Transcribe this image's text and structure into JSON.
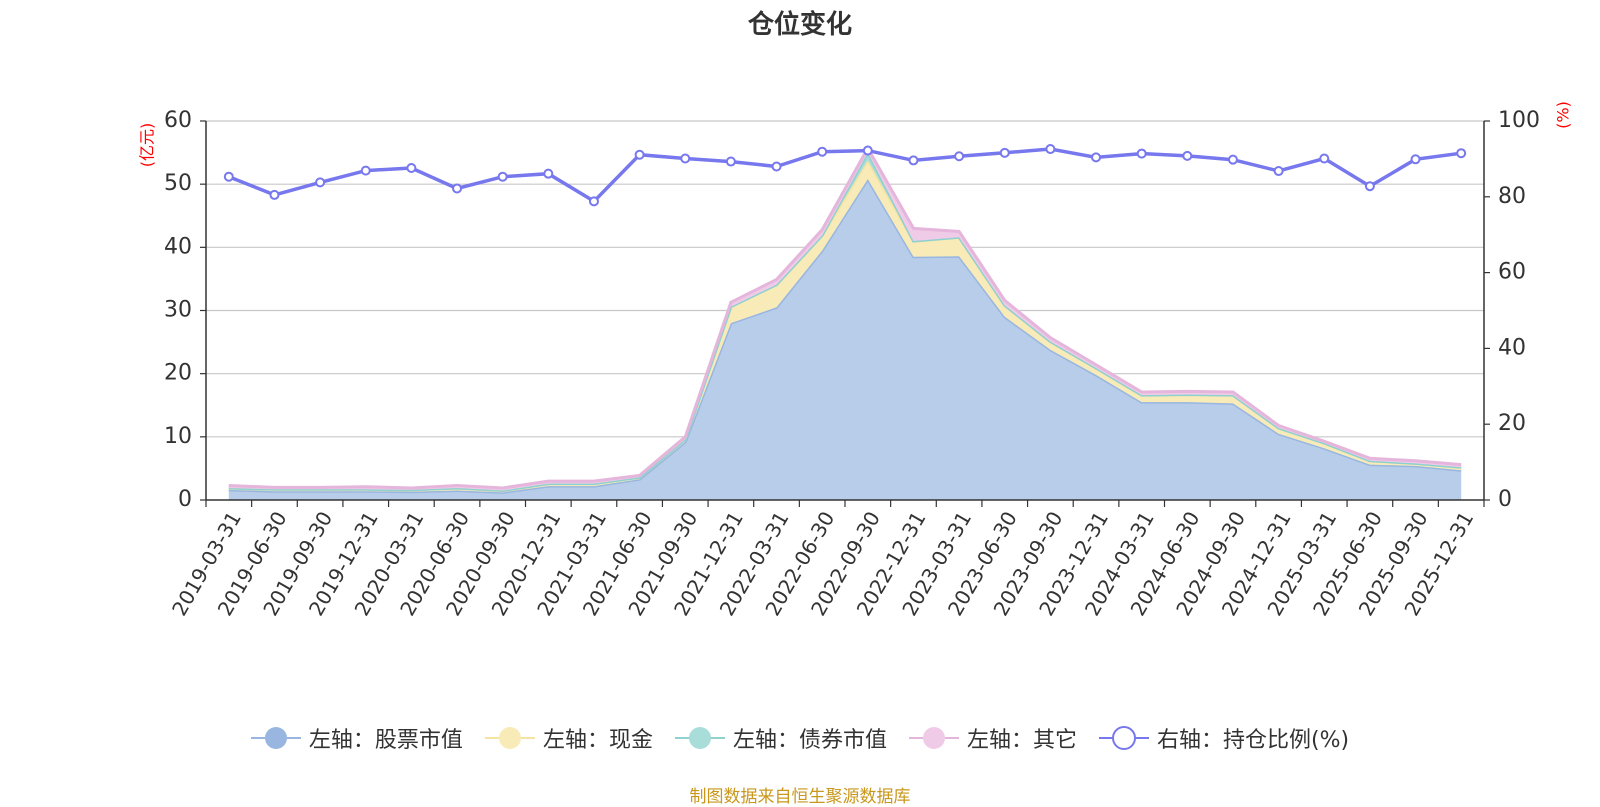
{
  "chart_data": {
    "type": "area",
    "title": "仓位变化",
    "source": "制图数据来自恒生聚源数据库",
    "left_axis": {
      "unit": "(亿元)",
      "min": 0,
      "max": 60,
      "ticks": [
        0,
        10,
        20,
        30,
        40,
        50,
        60
      ]
    },
    "right_axis": {
      "unit": "(%)",
      "min": 0,
      "max": 100,
      "ticks": [
        0,
        20,
        40,
        60,
        80,
        100
      ]
    },
    "categories": [
      "2019-03-31",
      "2019-06-30",
      "2019-09-30",
      "2019-12-31",
      "2020-03-31",
      "2020-06-30",
      "2020-09-30",
      "2020-12-31",
      "2021-03-31",
      "2021-06-30",
      "2021-09-30",
      "2021-12-31",
      "2022-03-31",
      "2022-06-30",
      "2022-09-30",
      "2022-12-31",
      "2023-03-31",
      "2023-06-30",
      "2023-09-30",
      "2023-12-31",
      "2024-03-31",
      "2024-06-30",
      "2024-09-30",
      "2024-12-31",
      "2025-03-31",
      "2025-06-30",
      "2025-09-30",
      "2025-12-31"
    ],
    "series": [
      {
        "name": "左轴：股票市值",
        "axis": "left",
        "stack": true,
        "color": "#98b6e0",
        "fill": "#b7cdea",
        "values": [
          1.6,
          1.4,
          1.4,
          1.4,
          1.3,
          1.5,
          1.2,
          2.2,
          2.2,
          3.3,
          9.2,
          28.0,
          30.5,
          39.5,
          50.8,
          38.5,
          38.6,
          29.0,
          23.8,
          19.8,
          15.5,
          15.5,
          15.3,
          10.5,
          8.2,
          5.6,
          5.4,
          4.7
        ]
      },
      {
        "name": "左轴：现金",
        "axis": "left",
        "stack": true,
        "color": "#f5e3a1",
        "fill": "#f8ebb8",
        "values": [
          0.3,
          0.3,
          0.3,
          0.3,
          0.3,
          0.4,
          0.3,
          0.4,
          0.4,
          0.3,
          0.4,
          2.6,
          3.6,
          2.4,
          3.0,
          2.5,
          3.0,
          1.8,
          1.3,
          1.1,
          1.1,
          1.2,
          1.3,
          0.9,
          0.8,
          0.6,
          0.4,
          0.5
        ]
      },
      {
        "name": "左轴：债券市值",
        "axis": "left",
        "stack": true,
        "color": "#8fd1cf",
        "fill": "#a9ddda",
        "values": [
          0,
          0,
          0,
          0,
          0,
          0,
          0,
          0,
          0,
          0,
          0,
          0,
          0,
          0,
          1.2,
          0,
          0,
          0,
          0,
          0,
          0,
          0,
          0,
          0,
          0,
          0,
          0,
          0
        ]
      },
      {
        "name": "左轴：其它",
        "axis": "left",
        "stack": true,
        "color": "#e5b5dc",
        "fill": "#efcbe8",
        "values": [
          0.4,
          0.3,
          0.3,
          0.4,
          0.3,
          0.4,
          0.4,
          0.4,
          0.4,
          0.3,
          0.4,
          0.7,
          0.8,
          0.9,
          0.7,
          2.0,
          0.9,
          0.8,
          0.6,
          0.5,
          0.5,
          0.5,
          0.5,
          0.4,
          0.3,
          0.4,
          0.4,
          0.4
        ]
      },
      {
        "name": "右轴：持仓比例(%)",
        "axis": "right",
        "stack": false,
        "color": "#7777ee",
        "values": [
          85.3,
          80.5,
          83.8,
          86.9,
          87.6,
          82.2,
          85.3,
          86.1,
          78.8,
          91.1,
          90.1,
          89.3,
          88.0,
          91.9,
          92.2,
          89.6,
          90.7,
          91.6,
          92.6,
          90.4,
          91.4,
          90.8,
          89.8,
          86.8,
          90.1,
          82.8,
          89.9,
          91.5
        ]
      }
    ]
  }
}
